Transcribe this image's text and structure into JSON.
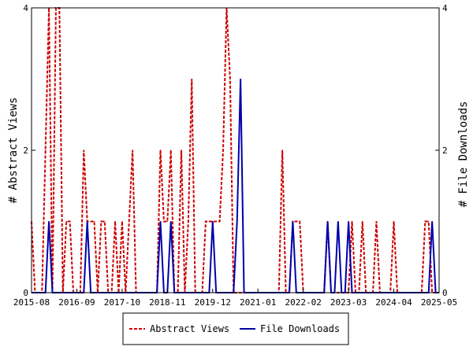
{
  "chart_data": {
    "type": "line",
    "xlabel": "",
    "ylabel_left": "# Abstract Views",
    "ylabel_right": "# File Downloads",
    "x_tick_labels": [
      "2015-08",
      "2016-09",
      "2017-10",
      "2018-11",
      "2019-12",
      "2021-01",
      "2022-02",
      "2023-03",
      "2024-04",
      "2025-05"
    ],
    "x_start": "2015-08",
    "x_end": "2025-05",
    "ylim_left": [
      0,
      4
    ],
    "ylim_right": [
      0,
      4
    ],
    "y_ticks_left": [
      0,
      2,
      4
    ],
    "y_ticks_right": [
      0,
      2,
      4
    ],
    "grid": false,
    "legend_position": "bottom-center",
    "series": [
      {
        "name": "Abstract Views",
        "axis": "left",
        "color": "#cc0000",
        "style": "dashed",
        "points": [
          [
            "2015-08",
            1
          ],
          [
            "2015-09",
            0
          ],
          [
            "2015-10",
            0
          ],
          [
            "2015-11",
            0
          ],
          [
            "2015-12",
            2
          ],
          [
            "2016-01",
            4
          ],
          [
            "2016-02",
            0
          ],
          [
            "2016-03",
            4
          ],
          [
            "2016-04",
            4
          ],
          [
            "2016-05",
            0
          ],
          [
            "2016-06",
            1
          ],
          [
            "2016-07",
            1
          ],
          [
            "2016-08",
            0
          ],
          [
            "2016-09",
            0
          ],
          [
            "2016-10",
            0
          ],
          [
            "2016-11",
            2
          ],
          [
            "2016-12",
            1
          ],
          [
            "2017-01",
            1
          ],
          [
            "2017-02",
            1
          ],
          [
            "2017-03",
            0
          ],
          [
            "2017-04",
            1
          ],
          [
            "2017-05",
            1
          ],
          [
            "2017-06",
            0
          ],
          [
            "2017-07",
            0
          ],
          [
            "2017-08",
            1
          ],
          [
            "2017-09",
            0
          ],
          [
            "2017-10",
            1
          ],
          [
            "2017-11",
            0
          ],
          [
            "2017-12",
            1
          ],
          [
            "2018-01",
            2
          ],
          [
            "2018-02",
            0
          ],
          [
            "2018-03",
            0
          ],
          [
            "2018-04",
            0
          ],
          [
            "2018-05",
            0
          ],
          [
            "2018-06",
            0
          ],
          [
            "2018-07",
            0
          ],
          [
            "2018-08",
            0
          ],
          [
            "2018-09",
            2
          ],
          [
            "2018-10",
            1
          ],
          [
            "2018-11",
            1
          ],
          [
            "2018-12",
            2
          ],
          [
            "2019-01",
            0
          ],
          [
            "2019-02",
            0
          ],
          [
            "2019-03",
            2
          ],
          [
            "2019-04",
            0
          ],
          [
            "2019-05",
            1
          ],
          [
            "2019-06",
            3
          ],
          [
            "2019-07",
            0
          ],
          [
            "2019-08",
            0
          ],
          [
            "2019-09",
            0
          ],
          [
            "2019-10",
            1
          ],
          [
            "2019-11",
            1
          ],
          [
            "2019-12",
            1
          ],
          [
            "2020-01",
            1
          ],
          [
            "2020-02",
            1
          ],
          [
            "2020-03",
            2
          ],
          [
            "2020-04",
            4
          ],
          [
            "2020-05",
            3
          ],
          [
            "2020-06",
            0
          ],
          [
            "2020-07",
            0
          ],
          [
            "2020-08",
            0
          ],
          [
            "2020-09",
            0
          ],
          [
            "2020-10",
            0
          ],
          [
            "2020-11",
            0
          ],
          [
            "2020-12",
            0
          ],
          [
            "2021-01",
            0
          ],
          [
            "2021-02",
            0
          ],
          [
            "2021-03",
            0
          ],
          [
            "2021-04",
            0
          ],
          [
            "2021-05",
            0
          ],
          [
            "2021-06",
            0
          ],
          [
            "2021-07",
            0
          ],
          [
            "2021-08",
            2
          ],
          [
            "2021-09",
            0
          ],
          [
            "2021-10",
            0
          ],
          [
            "2021-11",
            1
          ],
          [
            "2021-12",
            1
          ],
          [
            "2022-01",
            1
          ],
          [
            "2022-02",
            0
          ],
          [
            "2022-03",
            0
          ],
          [
            "2022-04",
            0
          ],
          [
            "2022-05",
            0
          ],
          [
            "2022-06",
            0
          ],
          [
            "2022-07",
            0
          ],
          [
            "2022-08",
            0
          ],
          [
            "2022-09",
            1
          ],
          [
            "2022-10",
            0
          ],
          [
            "2022-11",
            0
          ],
          [
            "2022-12",
            0
          ],
          [
            "2023-01",
            0
          ],
          [
            "2023-02",
            0
          ],
          [
            "2023-03",
            0
          ],
          [
            "2023-04",
            1
          ],
          [
            "2023-05",
            0
          ],
          [
            "2023-06",
            0
          ],
          [
            "2023-07",
            1
          ],
          [
            "2023-08",
            0
          ],
          [
            "2023-09",
            0
          ],
          [
            "2023-10",
            0
          ],
          [
            "2023-11",
            1
          ],
          [
            "2023-12",
            0
          ],
          [
            "2024-01",
            0
          ],
          [
            "2024-02",
            0
          ],
          [
            "2024-03",
            0
          ],
          [
            "2024-04",
            1
          ],
          [
            "2024-05",
            0
          ],
          [
            "2024-06",
            0
          ],
          [
            "2024-07",
            0
          ],
          [
            "2024-08",
            0
          ],
          [
            "2024-09",
            0
          ],
          [
            "2024-10",
            0
          ],
          [
            "2024-11",
            0
          ],
          [
            "2024-12",
            0
          ],
          [
            "2025-01",
            1
          ],
          [
            "2025-02",
            1
          ],
          [
            "2025-03",
            0
          ],
          [
            "2025-04",
            0
          ],
          [
            "2025-05",
            0
          ]
        ]
      },
      {
        "name": "File Downloads",
        "axis": "right",
        "color": "#0000aa",
        "style": "solid",
        "points": [
          [
            "2015-08",
            0
          ],
          [
            "2015-09",
            0
          ],
          [
            "2015-10",
            0
          ],
          [
            "2015-11",
            0
          ],
          [
            "2015-12",
            0
          ],
          [
            "2016-01",
            1
          ],
          [
            "2016-02",
            0
          ],
          [
            "2016-03",
            0
          ],
          [
            "2016-04",
            0
          ],
          [
            "2016-05",
            0
          ],
          [
            "2016-06",
            0
          ],
          [
            "2016-07",
            0
          ],
          [
            "2016-08",
            0
          ],
          [
            "2016-09",
            0
          ],
          [
            "2016-10",
            0
          ],
          [
            "2016-11",
            0
          ],
          [
            "2016-12",
            1
          ],
          [
            "2017-01",
            0
          ],
          [
            "2017-02",
            0
          ],
          [
            "2017-03",
            0
          ],
          [
            "2017-04",
            0
          ],
          [
            "2017-05",
            0
          ],
          [
            "2017-06",
            0
          ],
          [
            "2017-07",
            0
          ],
          [
            "2017-08",
            0
          ],
          [
            "2017-09",
            0
          ],
          [
            "2017-10",
            0
          ],
          [
            "2017-11",
            0
          ],
          [
            "2017-12",
            0
          ],
          [
            "2018-01",
            0
          ],
          [
            "2018-02",
            0
          ],
          [
            "2018-03",
            0
          ],
          [
            "2018-04",
            0
          ],
          [
            "2018-05",
            0
          ],
          [
            "2018-06",
            0
          ],
          [
            "2018-07",
            0
          ],
          [
            "2018-08",
            0
          ],
          [
            "2018-09",
            1
          ],
          [
            "2018-10",
            0
          ],
          [
            "2018-11",
            0
          ],
          [
            "2018-12",
            1
          ],
          [
            "2019-01",
            0
          ],
          [
            "2019-02",
            0
          ],
          [
            "2019-03",
            0
          ],
          [
            "2019-04",
            0
          ],
          [
            "2019-05",
            0
          ],
          [
            "2019-06",
            0
          ],
          [
            "2019-07",
            0
          ],
          [
            "2019-08",
            0
          ],
          [
            "2019-09",
            0
          ],
          [
            "2019-10",
            0
          ],
          [
            "2019-11",
            0
          ],
          [
            "2019-12",
            1
          ],
          [
            "2020-01",
            0
          ],
          [
            "2020-02",
            0
          ],
          [
            "2020-03",
            0
          ],
          [
            "2020-04",
            0
          ],
          [
            "2020-05",
            0
          ],
          [
            "2020-06",
            0
          ],
          [
            "2020-07",
            1
          ],
          [
            "2020-08",
            3
          ],
          [
            "2020-09",
            0
          ],
          [
            "2020-10",
            0
          ],
          [
            "2020-11",
            0
          ],
          [
            "2020-12",
            0
          ],
          [
            "2021-01",
            0
          ],
          [
            "2021-02",
            0
          ],
          [
            "2021-03",
            0
          ],
          [
            "2021-04",
            0
          ],
          [
            "2021-05",
            0
          ],
          [
            "2021-06",
            0
          ],
          [
            "2021-07",
            0
          ],
          [
            "2021-08",
            0
          ],
          [
            "2021-09",
            0
          ],
          [
            "2021-10",
            0
          ],
          [
            "2021-11",
            1
          ],
          [
            "2021-12",
            0
          ],
          [
            "2022-01",
            0
          ],
          [
            "2022-02",
            0
          ],
          [
            "2022-03",
            0
          ],
          [
            "2022-04",
            0
          ],
          [
            "2022-05",
            0
          ],
          [
            "2022-06",
            0
          ],
          [
            "2022-07",
            0
          ],
          [
            "2022-08",
            0
          ],
          [
            "2022-09",
            1
          ],
          [
            "2022-10",
            0
          ],
          [
            "2022-11",
            0
          ],
          [
            "2022-12",
            1
          ],
          [
            "2023-01",
            0
          ],
          [
            "2023-02",
            0
          ],
          [
            "2023-03",
            1
          ],
          [
            "2023-04",
            0
          ],
          [
            "2023-05",
            0
          ],
          [
            "2023-06",
            0
          ],
          [
            "2023-07",
            0
          ],
          [
            "2023-08",
            0
          ],
          [
            "2023-09",
            0
          ],
          [
            "2023-10",
            0
          ],
          [
            "2023-11",
            0
          ],
          [
            "2023-12",
            0
          ],
          [
            "2024-01",
            0
          ],
          [
            "2024-02",
            0
          ],
          [
            "2024-03",
            0
          ],
          [
            "2024-04",
            0
          ],
          [
            "2024-05",
            0
          ],
          [
            "2024-06",
            0
          ],
          [
            "2024-07",
            0
          ],
          [
            "2024-08",
            0
          ],
          [
            "2024-09",
            0
          ],
          [
            "2024-10",
            0
          ],
          [
            "2024-11",
            0
          ],
          [
            "2024-12",
            0
          ],
          [
            "2025-01",
            0
          ],
          [
            "2025-02",
            0
          ],
          [
            "2025-03",
            1
          ],
          [
            "2025-04",
            0
          ],
          [
            "2025-05",
            0
          ]
        ]
      }
    ]
  }
}
